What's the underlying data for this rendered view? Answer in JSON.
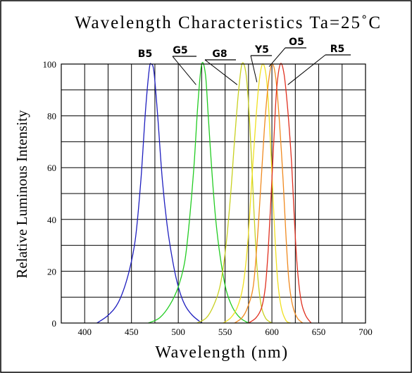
{
  "chart_data": {
    "type": "line",
    "title": "Wavelength Characteristics  Ta=25˚C",
    "xlabel": "Wavelength (nm)",
    "ylabel": "Relative Luminous Intensity",
    "xlim": [
      375,
      700
    ],
    "ylim": [
      0,
      100
    ],
    "x_ticks": [
      "400",
      "450",
      "500",
      "550",
      "600",
      "650",
      "700"
    ],
    "y_ticks": [
      "0",
      "20",
      "40",
      "60",
      "80",
      "100"
    ],
    "grid": true,
    "series": [
      {
        "name": "B5",
        "color": "#1f1fbf",
        "points": [
          [
            413,
            0
          ],
          [
            425,
            3
          ],
          [
            436,
            8
          ],
          [
            446,
            18
          ],
          [
            454,
            32
          ],
          [
            460,
            55
          ],
          [
            465,
            82
          ],
          [
            469,
            98
          ],
          [
            471,
            100
          ],
          [
            474,
            97
          ],
          [
            478,
            80
          ],
          [
            483,
            55
          ],
          [
            488,
            38
          ],
          [
            494,
            24
          ],
          [
            500,
            14
          ],
          [
            507,
            7
          ],
          [
            515,
            3
          ],
          [
            525,
            0
          ]
        ]
      },
      {
        "name": "G5",
        "color": "#22cc22",
        "points": [
          [
            468,
            0
          ],
          [
            480,
            2
          ],
          [
            491,
            7
          ],
          [
            500,
            14
          ],
          [
            507,
            24
          ],
          [
            512,
            40
          ],
          [
            517,
            62
          ],
          [
            521,
            85
          ],
          [
            525,
            100
          ],
          [
            529,
            96
          ],
          [
            532,
            80
          ],
          [
            536,
            58
          ],
          [
            540,
            40
          ],
          [
            545,
            25
          ],
          [
            551,
            13
          ],
          [
            558,
            6
          ],
          [
            566,
            2
          ],
          [
            575,
            0
          ]
        ]
      },
      {
        "name": "G8",
        "color": "#c8d020",
        "points": [
          [
            520,
            0
          ],
          [
            530,
            2
          ],
          [
            538,
            7
          ],
          [
            545,
            15
          ],
          [
            551,
            30
          ],
          [
            556,
            50
          ],
          [
            560,
            70
          ],
          [
            564,
            88
          ],
          [
            568,
            100
          ],
          [
            572,
            97
          ],
          [
            575,
            85
          ],
          [
            578,
            65
          ],
          [
            581,
            42
          ],
          [
            584,
            22
          ],
          [
            588,
            8
          ],
          [
            593,
            2
          ],
          [
            600,
            0
          ]
        ]
      },
      {
        "name": "Y5",
        "color": "#f0e020",
        "points": [
          [
            548,
            0
          ],
          [
            556,
            2
          ],
          [
            563,
            6
          ],
          [
            569,
            14
          ],
          [
            574,
            30
          ],
          [
            578,
            52
          ],
          [
            582,
            74
          ],
          [
            586,
            92
          ],
          [
            590,
            100
          ],
          [
            594,
            95
          ],
          [
            597,
            80
          ],
          [
            600,
            58
          ],
          [
            603,
            35
          ],
          [
            606,
            17
          ],
          [
            610,
            6
          ],
          [
            615,
            1
          ],
          [
            620,
            0
          ]
        ]
      },
      {
        "name": "O5",
        "color": "#f08a20",
        "points": [
          [
            560,
            0
          ],
          [
            568,
            2
          ],
          [
            574,
            6
          ],
          [
            580,
            14
          ],
          [
            584,
            30
          ],
          [
            588,
            52
          ],
          [
            592,
            75
          ],
          [
            596,
            92
          ],
          [
            600,
            100
          ],
          [
            604,
            95
          ],
          [
            608,
            78
          ],
          [
            612,
            55
          ],
          [
            615,
            34
          ],
          [
            618,
            17
          ],
          [
            622,
            7
          ],
          [
            627,
            2
          ],
          [
            633,
            0
          ]
        ]
      },
      {
        "name": "R5",
        "color": "#e03020",
        "points": [
          [
            575,
            0
          ],
          [
            583,
            2
          ],
          [
            589,
            6
          ],
          [
            593,
            14
          ],
          [
            596,
            28
          ],
          [
            599,
            48
          ],
          [
            602,
            70
          ],
          [
            605,
            90
          ],
          [
            609,
            100
          ],
          [
            613,
            96
          ],
          [
            617,
            82
          ],
          [
            621,
            62
          ],
          [
            624,
            40
          ],
          [
            627,
            22
          ],
          [
            631,
            9
          ],
          [
            636,
            3
          ],
          [
            642,
            0
          ]
        ]
      }
    ],
    "annotations": [
      {
        "series": "B5",
        "text": "B5",
        "at": [
          471,
          100
        ]
      },
      {
        "series": "G5",
        "text": "G5",
        "at": [
          519,
          92
        ]
      },
      {
        "series": "G8",
        "text": "G8",
        "at": [
          563,
          92
        ]
      },
      {
        "series": "Y5",
        "text": "Y5",
        "at": [
          584,
          93
        ]
      },
      {
        "series": "O5",
        "text": "O5",
        "at": [
          597,
          99
        ]
      },
      {
        "series": "R5",
        "text": "R5",
        "at": [
          617,
          92
        ]
      }
    ]
  }
}
